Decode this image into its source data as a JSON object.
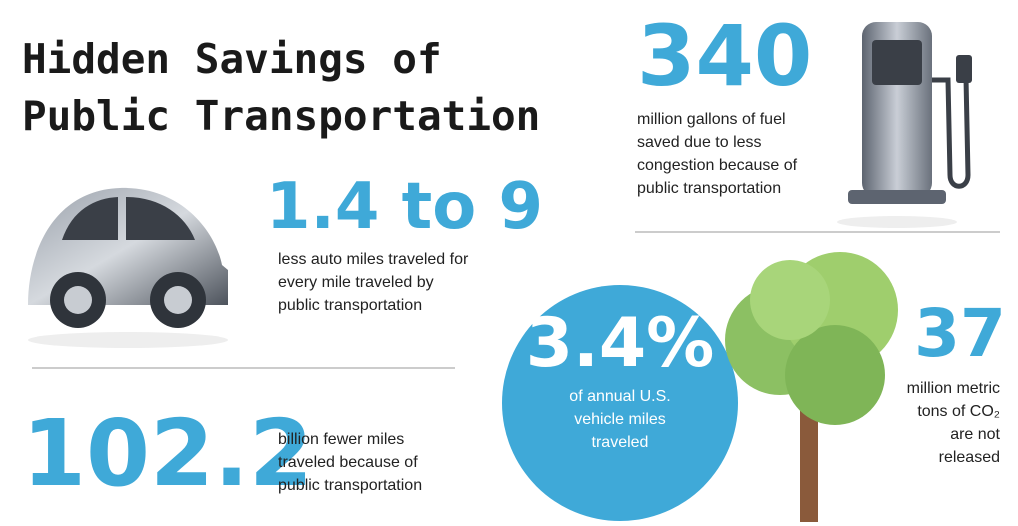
{
  "title_lines": [
    "Hidden Savings of",
    "Public Transportation"
  ],
  "stats": [
    {
      "figure": "340",
      "text": [
        "million gallons of fuel",
        "saved due to less",
        "congestion because of",
        "public transportation"
      ]
    },
    {
      "figure": "1.4 to 9",
      "text": [
        "less auto miles traveled for",
        "every mile traveled by",
        "public transportation"
      ]
    },
    {
      "figure": "3.4%",
      "text": [
        "of annual U.S.",
        "vehicle miles",
        "traveled"
      ]
    },
    {
      "figure": "37",
      "text": [
        "million metric",
        "tons of CO₂",
        "are not",
        "released"
      ]
    },
    {
      "figure": "102.2",
      "text": [
        "billion fewer miles",
        "traveled because of",
        "public transportation"
      ]
    }
  ]
}
